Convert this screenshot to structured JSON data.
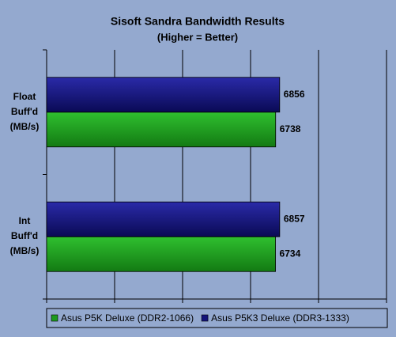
{
  "chart_data": {
    "type": "hbar",
    "title": "Sisoft Sandra Bandwidth Results",
    "subtitle": "(Higher = Better)",
    "categories": [
      "Float\nBuff'd\n(MB/s)",
      "Int\nBuff'd\n(MB/s)"
    ],
    "series": [
      {
        "name": "Asus P5K Deluxe (DDR2-1066)",
        "color": "#1e9a1e",
        "values": [
          6738,
          6734
        ]
      },
      {
        "name": "Asus P5K3 Deluxe (DDR3-1333)",
        "color": "#14147a",
        "values": [
          6856,
          6857
        ]
      }
    ],
    "xlim": [
      0,
      10000
    ],
    "xticks": [
      0,
      2000,
      4000,
      6000,
      8000,
      10000
    ],
    "grid": true,
    "legend": "bottom"
  }
}
